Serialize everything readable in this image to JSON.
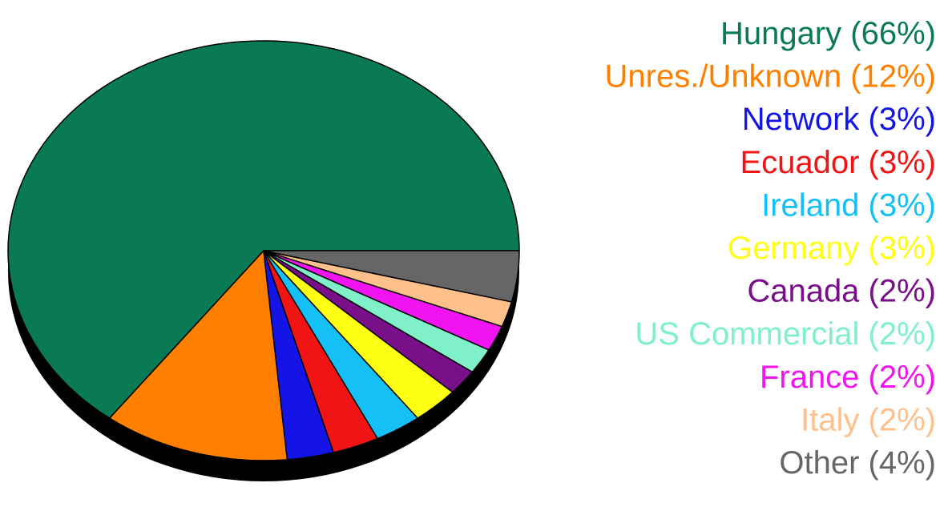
{
  "chart_data": {
    "type": "pie",
    "title": "",
    "legend_placement": "right",
    "slices": [
      {
        "label": "Hungary",
        "value": 66,
        "value_label": "(66%)",
        "color": "#0a7a55"
      },
      {
        "label": "Unres./Unknown",
        "value": 12,
        "value_label": "(12%)",
        "color": "#ff8000"
      },
      {
        "label": "Network",
        "value": 3,
        "value_label": "(3%)",
        "color": "#1414e6"
      },
      {
        "label": "Ecuador",
        "value": 3,
        "value_label": "(3%)",
        "color": "#f01414"
      },
      {
        "label": "Ireland",
        "value": 3,
        "value_label": "(3%)",
        "color": "#14c0f5"
      },
      {
        "label": "Germany",
        "value": 3,
        "value_label": "(3%)",
        "color": "#ffff14"
      },
      {
        "label": "Canada",
        "value": 2,
        "value_label": "(2%)",
        "color": "#7a0f8a"
      },
      {
        "label": "US Commercial",
        "value": 2,
        "value_label": "(2%)",
        "color": "#7ff0c8"
      },
      {
        "label": "France",
        "value": 2,
        "value_label": "(2%)",
        "color": "#f014f0"
      },
      {
        "label": "Italy",
        "value": 2,
        "value_label": "(2%)",
        "color": "#ffc08c"
      },
      {
        "label": "Other",
        "value": 4,
        "value_label": "(4%)",
        "color": "#666666"
      }
    ]
  }
}
